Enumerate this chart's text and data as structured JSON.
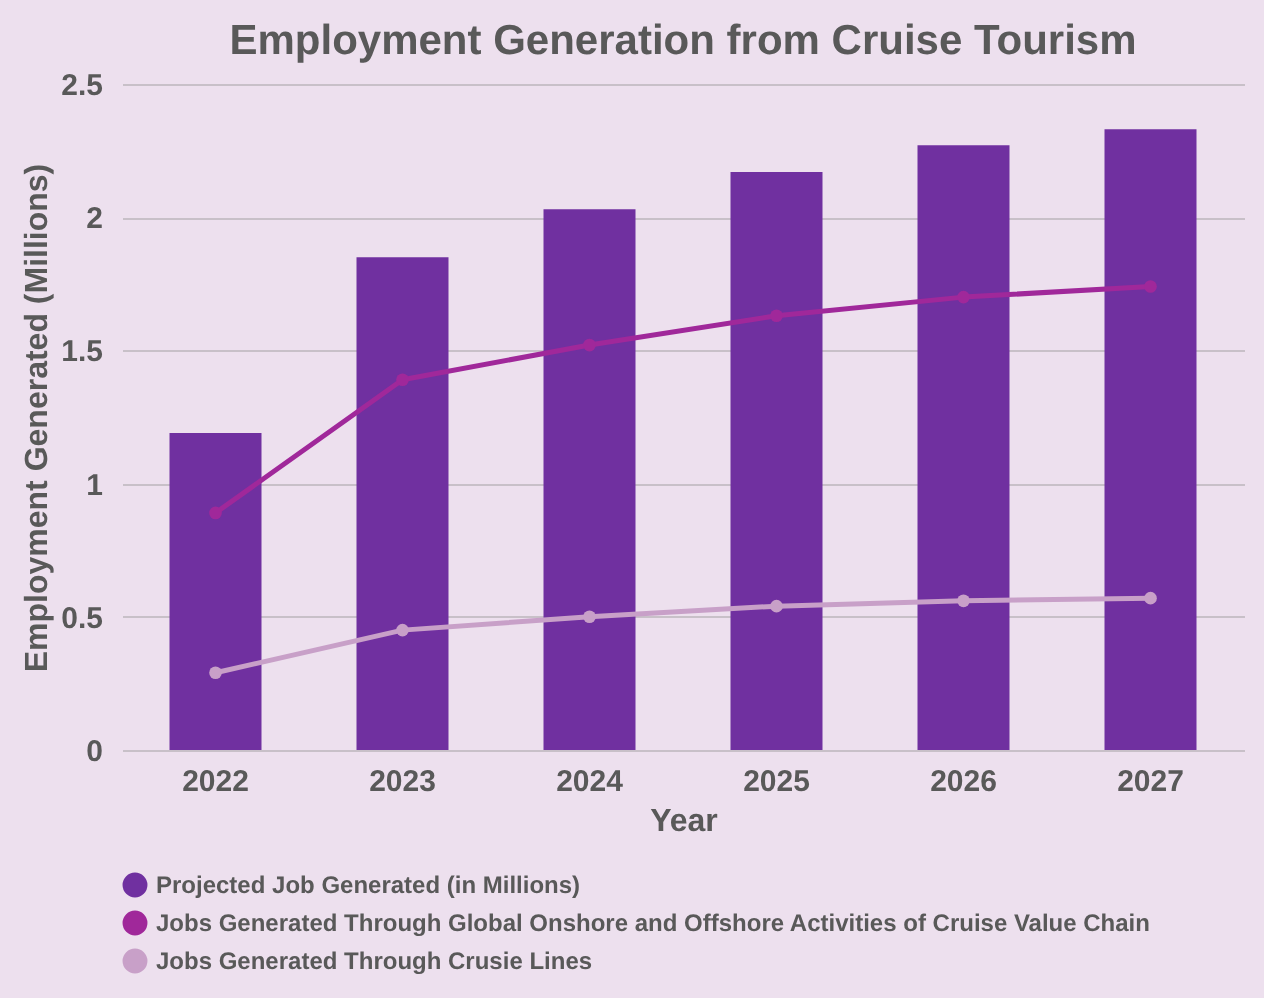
{
  "chart_data": {
    "type": "bar",
    "title": "Employment Generation from Cruise Tourism",
    "xlabel": "Year",
    "ylabel": "Employment Generated (Millions)",
    "categories": [
      "2022",
      "2023",
      "2024",
      "2025",
      "2026",
      "2027"
    ],
    "series": [
      {
        "name": "Projected Job Generated (in Millions)",
        "color": "#7030a0",
        "values": [
          1.19,
          1.85,
          2.03,
          2.17,
          2.27,
          2.33
        ]
      },
      {
        "name": "Jobs Generated Through Global Onshore and Offshore Activities of Cruise Value Chain",
        "type": "line",
        "color": "#a0289a",
        "values": [
          0.89,
          1.39,
          1.52,
          1.63,
          1.7,
          1.74
        ]
      },
      {
        "name": "Jobs Generated Through Crusie Lines",
        "type": "line",
        "color": "#c8a0c8",
        "values": [
          0.29,
          0.45,
          0.5,
          0.54,
          0.56,
          0.57
        ]
      }
    ],
    "ylim": [
      0,
      2.5
    ],
    "yticks": [
      0,
      0.5,
      1,
      1.5,
      2,
      2.5
    ],
    "grid": "y",
    "legend": "bottom",
    "marker": "circle",
    "line_style": "solid"
  }
}
